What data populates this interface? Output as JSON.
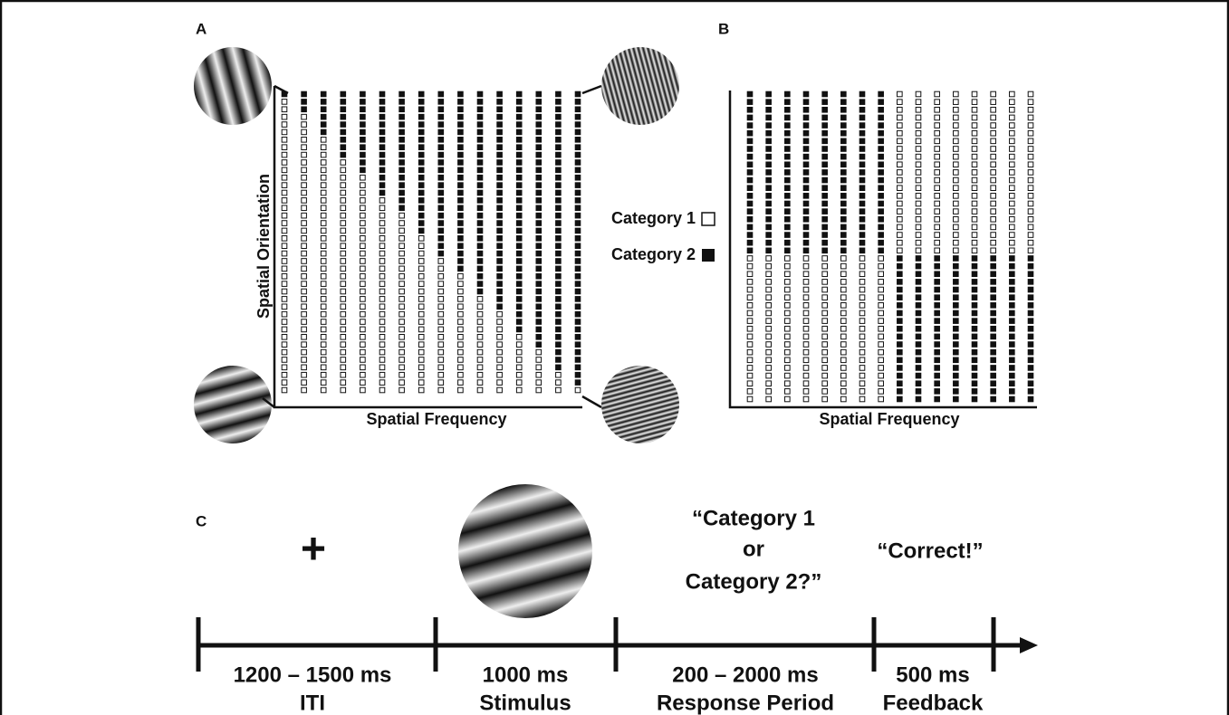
{
  "panels": {
    "a": {
      "label": "A",
      "y_axis_label": "Spatial Orientation",
      "x_axis_label": "Spatial Frequency",
      "rows": 40,
      "columns": [
        [
          0,
          1
        ],
        [
          0,
          3
        ],
        [
          0,
          6
        ],
        [
          0,
          9
        ],
        [
          0,
          11
        ],
        [
          0,
          14
        ],
        [
          0,
          16
        ],
        [
          0,
          19
        ],
        [
          0,
          22
        ],
        [
          0,
          24
        ],
        [
          0,
          27
        ],
        [
          0,
          29
        ],
        [
          0,
          32
        ],
        [
          0,
          34
        ],
        [
          0,
          37
        ],
        [
          0,
          39
        ]
      ]
    },
    "b": {
      "label": "B",
      "x_axis_label": "Spatial Frequency",
      "rows": 40,
      "columns": [
        [
          0,
          21
        ],
        [
          0,
          21
        ],
        [
          0,
          21
        ],
        [
          0,
          21
        ],
        [
          0,
          21
        ],
        [
          0,
          21
        ],
        [
          0,
          21
        ],
        [
          0,
          21
        ],
        [
          21,
          19
        ],
        [
          21,
          19
        ],
        [
          21,
          19
        ],
        [
          21,
          19
        ],
        [
          21,
          19
        ],
        [
          21,
          19
        ],
        [
          21,
          19
        ],
        [
          21,
          19
        ]
      ]
    }
  },
  "legend": [
    {
      "label": "Category 1"
    },
    {
      "label": "Category 2"
    }
  ],
  "panel_c": {
    "label": "C",
    "fixation": "+",
    "response_prompt": [
      "“Category 1",
      "or",
      "Category 2?”"
    ],
    "feedback_prompt": "“Correct!”",
    "periods": [
      {
        "duration": "1200 – 1500 ms",
        "name": "ITI"
      },
      {
        "duration": "1000 ms",
        "name": "Stimulus"
      },
      {
        "duration": "200 – 2000 ms",
        "name": "Response Period"
      },
      {
        "duration": "500 ms",
        "name": "Feedback"
      }
    ]
  }
}
